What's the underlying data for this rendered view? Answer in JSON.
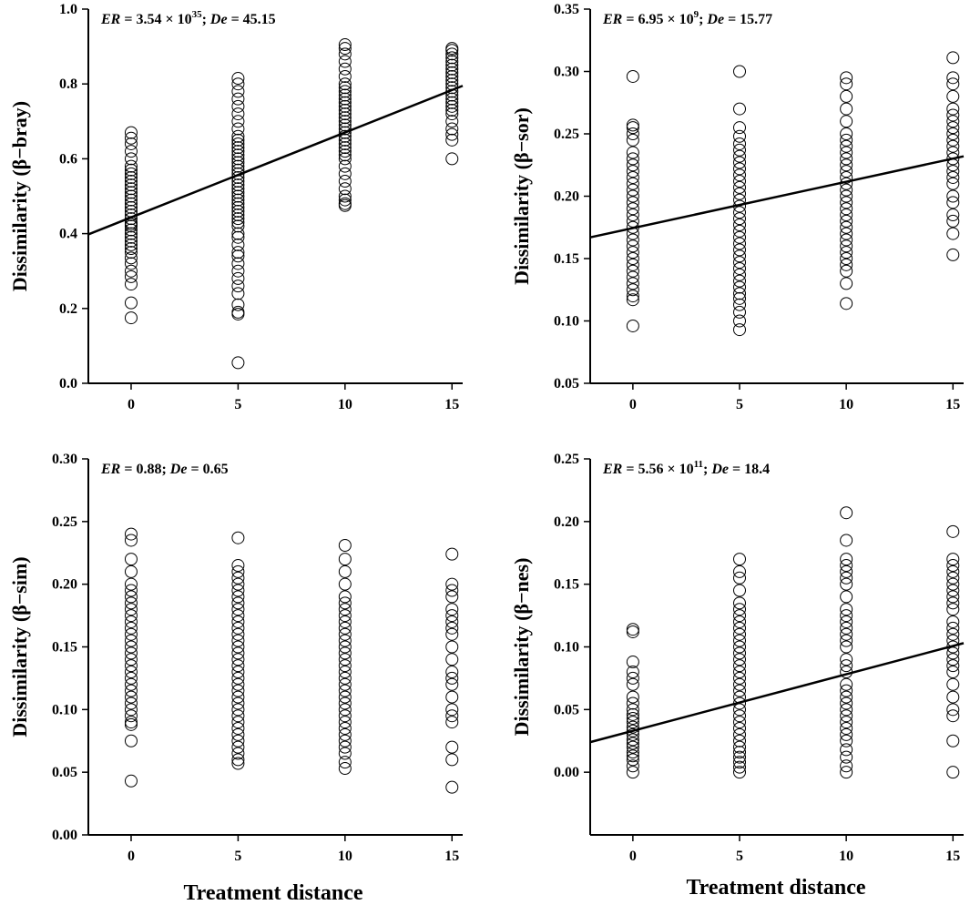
{
  "figure": {
    "xlabel": "Treatment distance"
  },
  "chart_data": [
    {
      "type": "scatter",
      "panel": "top-left",
      "title": "",
      "xlabel": "",
      "ylabel": "Dissimilarity (β−bray)",
      "xlim": [
        -2,
        15.5
      ],
      "ylim": [
        0.0,
        1.0
      ],
      "xticks": [
        0,
        5,
        10,
        15
      ],
      "xtick_labels": [
        "0",
        "5",
        "10",
        "15"
      ],
      "yticks": [
        0.0,
        0.2,
        0.4,
        0.6,
        0.8,
        1.0
      ],
      "ytick_labels": [
        "0.0",
        "0.2",
        "0.4",
        "0.6",
        "0.8",
        "1.0"
      ],
      "annotation": {
        "er_label": "ER",
        "er_value": " = 3.54 × 10",
        "er_exp": "35",
        "sep": "; ",
        "de_label": "De",
        "de_value": " = 45.15"
      },
      "regression": {
        "x": [
          -2,
          15.5
        ],
        "y": [
          0.398,
          0.795
        ]
      },
      "series": [
        {
          "name": "0",
          "x": 0,
          "y": [
            0.175,
            0.215,
            0.265,
            0.285,
            0.3,
            0.32,
            0.335,
            0.35,
            0.36,
            0.37,
            0.38,
            0.39,
            0.4,
            0.41,
            0.42,
            0.425,
            0.43,
            0.44,
            0.45,
            0.46,
            0.47,
            0.48,
            0.49,
            0.5,
            0.51,
            0.52,
            0.53,
            0.54,
            0.55,
            0.56,
            0.57,
            0.58,
            0.6,
            0.62,
            0.64,
            0.655,
            0.67
          ]
        },
        {
          "name": "5",
          "x": 5,
          "y": [
            0.055,
            0.185,
            0.19,
            0.21,
            0.24,
            0.26,
            0.28,
            0.3,
            0.32,
            0.34,
            0.35,
            0.37,
            0.39,
            0.4,
            0.42,
            0.43,
            0.44,
            0.45,
            0.46,
            0.47,
            0.48,
            0.49,
            0.5,
            0.51,
            0.52,
            0.53,
            0.54,
            0.55,
            0.56,
            0.57,
            0.58,
            0.59,
            0.6,
            0.61,
            0.62,
            0.63,
            0.64,
            0.65,
            0.66,
            0.68,
            0.7,
            0.72,
            0.74,
            0.76,
            0.78,
            0.8,
            0.815
          ]
        },
        {
          "name": "10",
          "x": 10,
          "y": [
            0.475,
            0.48,
            0.49,
            0.5,
            0.52,
            0.54,
            0.56,
            0.58,
            0.6,
            0.61,
            0.62,
            0.63,
            0.64,
            0.65,
            0.66,
            0.67,
            0.68,
            0.69,
            0.7,
            0.71,
            0.72,
            0.73,
            0.74,
            0.75,
            0.76,
            0.77,
            0.78,
            0.79,
            0.8,
            0.82,
            0.84,
            0.86,
            0.88,
            0.895,
            0.905
          ]
        },
        {
          "name": "15",
          "x": 15,
          "y": [
            0.6,
            0.65,
            0.665,
            0.68,
            0.7,
            0.72,
            0.73,
            0.74,
            0.75,
            0.76,
            0.77,
            0.78,
            0.79,
            0.8,
            0.81,
            0.82,
            0.83,
            0.84,
            0.85,
            0.86,
            0.87,
            0.88,
            0.89,
            0.895
          ]
        }
      ]
    },
    {
      "type": "scatter",
      "panel": "top-right",
      "title": "",
      "xlabel": "",
      "ylabel": "Dissimilarity (β−sor)",
      "xlim": [
        -2,
        15.5
      ],
      "ylim": [
        0.05,
        0.35
      ],
      "xticks": [
        0,
        5,
        10,
        15
      ],
      "xtick_labels": [
        "0",
        "5",
        "10",
        "15"
      ],
      "yticks": [
        0.05,
        0.1,
        0.15,
        0.2,
        0.25,
        0.3,
        0.35
      ],
      "ytick_labels": [
        "0.05",
        "0.10",
        "0.15",
        "0.20",
        "0.25",
        "0.30",
        "0.35"
      ],
      "annotation": {
        "er_label": "ER",
        "er_value": " = 6.95 × 10",
        "er_exp": "9",
        "sep": "; ",
        "de_label": "De",
        "de_value": " = 15.77"
      },
      "regression": {
        "x": [
          -2,
          15.5
        ],
        "y": [
          0.167,
          0.232
        ]
      },
      "series": [
        {
          "name": "0",
          "x": 0,
          "y": [
            0.096,
            0.117,
            0.12,
            0.125,
            0.13,
            0.135,
            0.14,
            0.145,
            0.15,
            0.155,
            0.16,
            0.165,
            0.17,
            0.175,
            0.18,
            0.185,
            0.19,
            0.195,
            0.2,
            0.205,
            0.21,
            0.215,
            0.22,
            0.225,
            0.23,
            0.235,
            0.245,
            0.25,
            0.255,
            0.257,
            0.296
          ]
        },
        {
          "name": "5",
          "x": 5,
          "y": [
            0.093,
            0.1,
            0.107,
            0.113,
            0.118,
            0.122,
            0.127,
            0.132,
            0.137,
            0.142,
            0.147,
            0.152,
            0.157,
            0.162,
            0.167,
            0.172,
            0.177,
            0.182,
            0.187,
            0.192,
            0.197,
            0.202,
            0.207,
            0.212,
            0.217,
            0.222,
            0.227,
            0.232,
            0.237,
            0.242,
            0.248,
            0.255,
            0.27,
            0.3
          ]
        },
        {
          "name": "10",
          "x": 10,
          "y": [
            0.114,
            0.13,
            0.14,
            0.145,
            0.15,
            0.155,
            0.16,
            0.165,
            0.17,
            0.175,
            0.18,
            0.185,
            0.19,
            0.195,
            0.2,
            0.205,
            0.21,
            0.215,
            0.22,
            0.225,
            0.23,
            0.235,
            0.24,
            0.245,
            0.25,
            0.26,
            0.27,
            0.28,
            0.29,
            0.295
          ]
        },
        {
          "name": "15",
          "x": 15,
          "y": [
            0.153,
            0.17,
            0.18,
            0.185,
            0.195,
            0.2,
            0.21,
            0.215,
            0.22,
            0.225,
            0.23,
            0.235,
            0.24,
            0.245,
            0.25,
            0.255,
            0.26,
            0.265,
            0.27,
            0.28,
            0.29,
            0.295,
            0.311
          ]
        }
      ]
    },
    {
      "type": "scatter",
      "panel": "bottom-left",
      "title": "",
      "xlabel": "Treatment distance",
      "ylabel": "Dissimilarity (β−sim)",
      "xlim": [
        -2,
        15.5
      ],
      "ylim": [
        0.0,
        0.3
      ],
      "xticks": [
        0,
        5,
        10,
        15
      ],
      "xtick_labels": [
        "0",
        "5",
        "10",
        "15"
      ],
      "yticks": [
        0.0,
        0.05,
        0.1,
        0.15,
        0.2,
        0.25,
        0.3
      ],
      "ytick_labels": [
        "0.00",
        "0.05",
        "0.10",
        "0.15",
        "0.20",
        "0.25",
        "0.30"
      ],
      "annotation": {
        "er_label": "ER",
        "er_value": " = 0.88",
        "er_exp": "",
        "sep": "; ",
        "de_label": "De",
        "de_value": " = 0.65"
      },
      "regression": null,
      "series": [
        {
          "name": "0",
          "x": 0,
          "y": [
            0.043,
            0.075,
            0.088,
            0.09,
            0.095,
            0.1,
            0.105,
            0.11,
            0.115,
            0.12,
            0.125,
            0.13,
            0.135,
            0.14,
            0.145,
            0.15,
            0.155,
            0.16,
            0.165,
            0.17,
            0.175,
            0.18,
            0.185,
            0.19,
            0.195,
            0.2,
            0.21,
            0.22,
            0.235,
            0.24
          ]
        },
        {
          "name": "5",
          "x": 5,
          "y": [
            0.057,
            0.06,
            0.065,
            0.07,
            0.075,
            0.08,
            0.085,
            0.09,
            0.095,
            0.1,
            0.105,
            0.11,
            0.115,
            0.12,
            0.125,
            0.13,
            0.135,
            0.14,
            0.145,
            0.15,
            0.155,
            0.16,
            0.165,
            0.17,
            0.175,
            0.18,
            0.185,
            0.19,
            0.195,
            0.2,
            0.205,
            0.21,
            0.215,
            0.237
          ]
        },
        {
          "name": "10",
          "x": 10,
          "y": [
            0.053,
            0.058,
            0.065,
            0.07,
            0.075,
            0.08,
            0.085,
            0.09,
            0.095,
            0.1,
            0.105,
            0.11,
            0.115,
            0.12,
            0.125,
            0.13,
            0.135,
            0.14,
            0.145,
            0.15,
            0.155,
            0.16,
            0.165,
            0.17,
            0.175,
            0.18,
            0.185,
            0.19,
            0.2,
            0.21,
            0.22,
            0.231
          ]
        },
        {
          "name": "15",
          "x": 15,
          "y": [
            0.038,
            0.06,
            0.07,
            0.09,
            0.095,
            0.1,
            0.11,
            0.12,
            0.125,
            0.13,
            0.14,
            0.15,
            0.16,
            0.165,
            0.17,
            0.175,
            0.18,
            0.19,
            0.195,
            0.2,
            0.224
          ]
        }
      ]
    },
    {
      "type": "scatter",
      "panel": "bottom-right",
      "title": "",
      "xlabel": "Treatment distance",
      "ylabel": "Dissimilarity (β−nes)",
      "xlim": [
        -2,
        15.5
      ],
      "ylim": [
        -0.05,
        0.25
      ],
      "xticks": [
        0,
        5,
        10,
        15
      ],
      "xtick_labels": [
        "0",
        "5",
        "10",
        "15"
      ],
      "yticks": [
        0.0,
        0.05,
        0.1,
        0.15,
        0.2,
        0.25
      ],
      "ytick_labels": [
        "0.00",
        "0.05",
        "0.10",
        "0.15",
        "0.20",
        "0.25"
      ],
      "annotation": {
        "er_label": "ER",
        "er_value": " = 5.56 × 10",
        "er_exp": "11",
        "sep": "; ",
        "de_label": "De",
        "de_value": " = 18.4"
      },
      "regression": {
        "x": [
          -2,
          15.5
        ],
        "y": [
          0.024,
          0.103
        ]
      },
      "series": [
        {
          "name": "0",
          "x": 0,
          "y": [
            0.0,
            0.005,
            0.01,
            0.013,
            0.016,
            0.02,
            0.023,
            0.026,
            0.03,
            0.033,
            0.036,
            0.04,
            0.043,
            0.046,
            0.05,
            0.055,
            0.06,
            0.07,
            0.075,
            0.08,
            0.088,
            0.112,
            0.114
          ]
        },
        {
          "name": "5",
          "x": 5,
          "y": [
            0.0,
            0.004,
            0.008,
            0.012,
            0.016,
            0.02,
            0.025,
            0.03,
            0.035,
            0.04,
            0.045,
            0.05,
            0.055,
            0.06,
            0.065,
            0.07,
            0.075,
            0.08,
            0.085,
            0.09,
            0.095,
            0.1,
            0.105,
            0.11,
            0.115,
            0.12,
            0.125,
            0.13,
            0.135,
            0.145,
            0.155,
            0.16,
            0.17
          ]
        },
        {
          "name": "10",
          "x": 10,
          "y": [
            0.0,
            0.005,
            0.012,
            0.018,
            0.025,
            0.03,
            0.035,
            0.04,
            0.045,
            0.05,
            0.055,
            0.06,
            0.065,
            0.07,
            0.08,
            0.085,
            0.09,
            0.1,
            0.105,
            0.11,
            0.115,
            0.12,
            0.125,
            0.13,
            0.14,
            0.15,
            0.155,
            0.16,
            0.165,
            0.17,
            0.185,
            0.207
          ]
        },
        {
          "name": "15",
          "x": 15,
          "y": [
            0.0,
            0.025,
            0.045,
            0.05,
            0.06,
            0.07,
            0.08,
            0.085,
            0.09,
            0.095,
            0.1,
            0.105,
            0.11,
            0.115,
            0.12,
            0.13,
            0.135,
            0.14,
            0.145,
            0.15,
            0.155,
            0.16,
            0.165,
            0.17,
            0.192
          ]
        }
      ]
    }
  ]
}
